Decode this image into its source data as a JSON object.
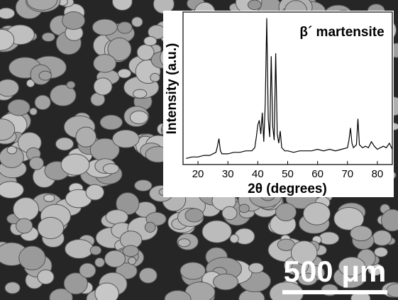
{
  "chart_data": {
    "type": "line",
    "annotation": "β´ martensite",
    "xlabel": "2θ (degrees)",
    "ylabel": "Intensity (a.u.)",
    "x": [
      16,
      18,
      20,
      22,
      24,
      25,
      26,
      26.5,
      27,
      27.5,
      28,
      30,
      32,
      34,
      36,
      38,
      39,
      39.5,
      40,
      40.5,
      41,
      41.5,
      42,
      42.5,
      43,
      43.5,
      44,
      44.5,
      45,
      45.5,
      46,
      46.5,
      47,
      47.5,
      48,
      49,
      50,
      52,
      54,
      56,
      58,
      60,
      62,
      64,
      66,
      68,
      70,
      70.5,
      71,
      71.5,
      72,
      73,
      73.5,
      74,
      75,
      76,
      77,
      78,
      79,
      80,
      81,
      82,
      83,
      84,
      85
    ],
    "values": [
      4,
      5,
      5,
      6,
      6,
      7,
      8,
      12,
      17,
      9,
      7,
      7,
      8,
      8,
      9,
      9,
      11,
      18,
      26,
      29,
      20,
      34,
      15,
      40,
      96,
      30,
      18,
      71,
      25,
      16,
      73,
      20,
      14,
      22,
      11,
      9,
      9,
      8,
      9,
      9,
      9,
      10,
      9,
      10,
      9,
      10,
      11,
      16,
      24,
      14,
      11,
      13,
      30,
      13,
      11,
      12,
      11,
      15,
      12,
      10,
      11,
      12,
      11,
      14,
      10
    ],
    "color": "#000000",
    "xlim": [
      15,
      85
    ],
    "xticks": [
      20,
      30,
      40,
      50,
      60,
      70,
      80
    ],
    "ylim": [
      0,
      100
    ]
  },
  "scale_bar": {
    "label": "500 μm"
  }
}
